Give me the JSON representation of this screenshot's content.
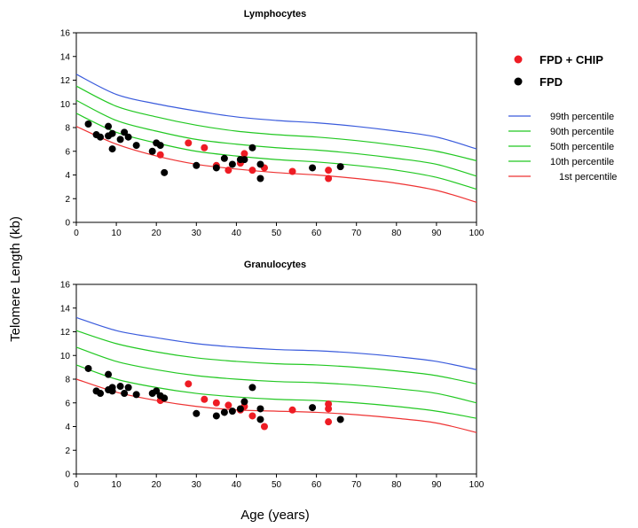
{
  "figure": {
    "ylabel": "Telomere Length (kb)",
    "xlabel": "Age (years)"
  },
  "legend": {
    "groups": [
      {
        "label": "FPD + CHIP",
        "color": "#ee1c24"
      },
      {
        "label": "FPD",
        "color": "#000000"
      }
    ],
    "percentiles": [
      {
        "label": "99th percentile",
        "color": "#3a5bdc"
      },
      {
        "label": "90th percentile",
        "color": "#22c822"
      },
      {
        "label": "50th percentile",
        "color": "#22c822"
      },
      {
        "label": "10th percentile",
        "color": "#22c822"
      },
      {
        "label": "1st percentile",
        "color": "#ee3333"
      }
    ]
  },
  "chart_data": [
    {
      "type": "scatter",
      "title": "Lymphocytes",
      "xlim": [
        0,
        100
      ],
      "ylim": [
        0,
        16
      ],
      "xticks": [
        0,
        10,
        20,
        30,
        40,
        50,
        60,
        70,
        80,
        90,
        100
      ],
      "yticks": [
        0,
        2,
        4,
        6,
        8,
        10,
        12,
        14,
        16
      ],
      "grid": false,
      "curve_x": [
        0,
        10,
        20,
        30,
        40,
        50,
        60,
        70,
        80,
        90,
        100
      ],
      "percentile_curves": [
        {
          "name": "99th percentile",
          "color": "#3a5bdc",
          "y": [
            12.5,
            10.8,
            10.0,
            9.4,
            8.9,
            8.6,
            8.4,
            8.1,
            7.7,
            7.2,
            6.2
          ]
        },
        {
          "name": "90th percentile",
          "color": "#22c822",
          "y": [
            11.5,
            9.8,
            8.9,
            8.2,
            7.7,
            7.4,
            7.2,
            6.9,
            6.5,
            6.0,
            5.2
          ]
        },
        {
          "name": "50th percentile",
          "color": "#22c822",
          "y": [
            10.3,
            8.6,
            7.7,
            7.0,
            6.6,
            6.3,
            6.1,
            5.8,
            5.4,
            4.9,
            3.9
          ]
        },
        {
          "name": "10th percentile",
          "color": "#22c822",
          "y": [
            9.2,
            7.6,
            6.7,
            6.0,
            5.6,
            5.3,
            5.1,
            4.8,
            4.4,
            3.8,
            2.8
          ]
        },
        {
          "name": "1st percentile",
          "color": "#ee3333",
          "y": [
            8.1,
            6.6,
            5.6,
            4.9,
            4.5,
            4.2,
            4.0,
            3.7,
            3.3,
            2.7,
            1.7
          ]
        }
      ],
      "series": [
        {
          "name": "FPD + CHIP",
          "color": "#ee1c24",
          "points": [
            [
              21,
              5.7
            ],
            [
              28,
              6.7
            ],
            [
              32,
              6.3
            ],
            [
              35,
              4.8
            ],
            [
              38,
              4.4
            ],
            [
              41,
              5.0
            ],
            [
              42,
              5.8
            ],
            [
              44,
              4.4
            ],
            [
              47,
              4.6
            ],
            [
              54,
              4.3
            ],
            [
              63,
              4.4
            ],
            [
              63,
              3.7
            ]
          ]
        },
        {
          "name": "FPD",
          "color": "#000000",
          "points": [
            [
              3,
              8.3
            ],
            [
              5,
              7.4
            ],
            [
              6,
              7.2
            ],
            [
              8,
              8.1
            ],
            [
              8,
              7.3
            ],
            [
              9,
              6.2
            ],
            [
              9,
              7.5
            ],
            [
              11,
              7.0
            ],
            [
              12,
              7.6
            ],
            [
              13,
              7.2
            ],
            [
              15,
              6.5
            ],
            [
              19,
              6.0
            ],
            [
              20,
              6.7
            ],
            [
              21,
              6.5
            ],
            [
              22,
              4.2
            ],
            [
              30,
              4.8
            ],
            [
              35,
              4.6
            ],
            [
              37,
              5.4
            ],
            [
              39,
              4.9
            ],
            [
              41,
              5.3
            ],
            [
              42,
              5.3
            ],
            [
              44,
              6.3
            ],
            [
              46,
              4.9
            ],
            [
              46,
              3.7
            ],
            [
              59,
              4.6
            ],
            [
              66,
              4.7
            ]
          ]
        }
      ]
    },
    {
      "type": "scatter",
      "title": "Granulocytes",
      "xlim": [
        0,
        100
      ],
      "ylim": [
        0,
        16
      ],
      "xticks": [
        0,
        10,
        20,
        30,
        40,
        50,
        60,
        70,
        80,
        90,
        100
      ],
      "yticks": [
        0,
        2,
        4,
        6,
        8,
        10,
        12,
        14,
        16
      ],
      "grid": false,
      "curve_x": [
        0,
        10,
        20,
        30,
        40,
        50,
        60,
        70,
        80,
        90,
        100
      ],
      "percentile_curves": [
        {
          "name": "99th percentile",
          "color": "#3a5bdc",
          "y": [
            13.2,
            12.1,
            11.5,
            11.0,
            10.7,
            10.5,
            10.4,
            10.2,
            9.9,
            9.5,
            8.8
          ]
        },
        {
          "name": "90th percentile",
          "color": "#22c822",
          "y": [
            12.1,
            11.0,
            10.3,
            9.8,
            9.5,
            9.3,
            9.2,
            9.0,
            8.7,
            8.3,
            7.6
          ]
        },
        {
          "name": "50th percentile",
          "color": "#22c822",
          "y": [
            10.7,
            9.5,
            8.8,
            8.3,
            8.0,
            7.8,
            7.7,
            7.5,
            7.2,
            6.8,
            6.0
          ]
        },
        {
          "name": "10th percentile",
          "color": "#22c822",
          "y": [
            9.2,
            8.0,
            7.3,
            6.8,
            6.5,
            6.3,
            6.2,
            6.0,
            5.7,
            5.3,
            4.7
          ]
        },
        {
          "name": "1st percentile",
          "color": "#ee3333",
          "y": [
            8.0,
            6.9,
            6.2,
            5.7,
            5.4,
            5.3,
            5.2,
            5.0,
            4.7,
            4.3,
            3.5
          ]
        }
      ],
      "series": [
        {
          "name": "FPD + CHIP",
          "color": "#ee1c24",
          "points": [
            [
              21,
              6.2
            ],
            [
              28,
              7.6
            ],
            [
              32,
              6.3
            ],
            [
              35,
              6.0
            ],
            [
              38,
              5.8
            ],
            [
              41,
              5.4
            ],
            [
              42,
              5.7
            ],
            [
              44,
              4.9
            ],
            [
              47,
              4.0
            ],
            [
              54,
              5.4
            ],
            [
              63,
              5.9
            ],
            [
              63,
              5.5
            ],
            [
              63,
              4.4
            ]
          ]
        },
        {
          "name": "FPD",
          "color": "#000000",
          "points": [
            [
              3,
              8.9
            ],
            [
              5,
              7.0
            ],
            [
              6,
              6.8
            ],
            [
              8,
              8.4
            ],
            [
              8,
              7.1
            ],
            [
              9,
              7.3
            ],
            [
              9,
              7.0
            ],
            [
              11,
              7.4
            ],
            [
              12,
              6.8
            ],
            [
              13,
              7.3
            ],
            [
              15,
              6.7
            ],
            [
              19,
              6.8
            ],
            [
              20,
              7.0
            ],
            [
              21,
              6.6
            ],
            [
              22,
              6.4
            ],
            [
              30,
              5.1
            ],
            [
              35,
              4.9
            ],
            [
              37,
              5.2
            ],
            [
              39,
              5.3
            ],
            [
              41,
              5.5
            ],
            [
              42,
              6.1
            ],
            [
              44,
              7.3
            ],
            [
              46,
              5.5
            ],
            [
              46,
              4.6
            ],
            [
              59,
              5.6
            ],
            [
              66,
              4.6
            ]
          ]
        }
      ]
    }
  ]
}
